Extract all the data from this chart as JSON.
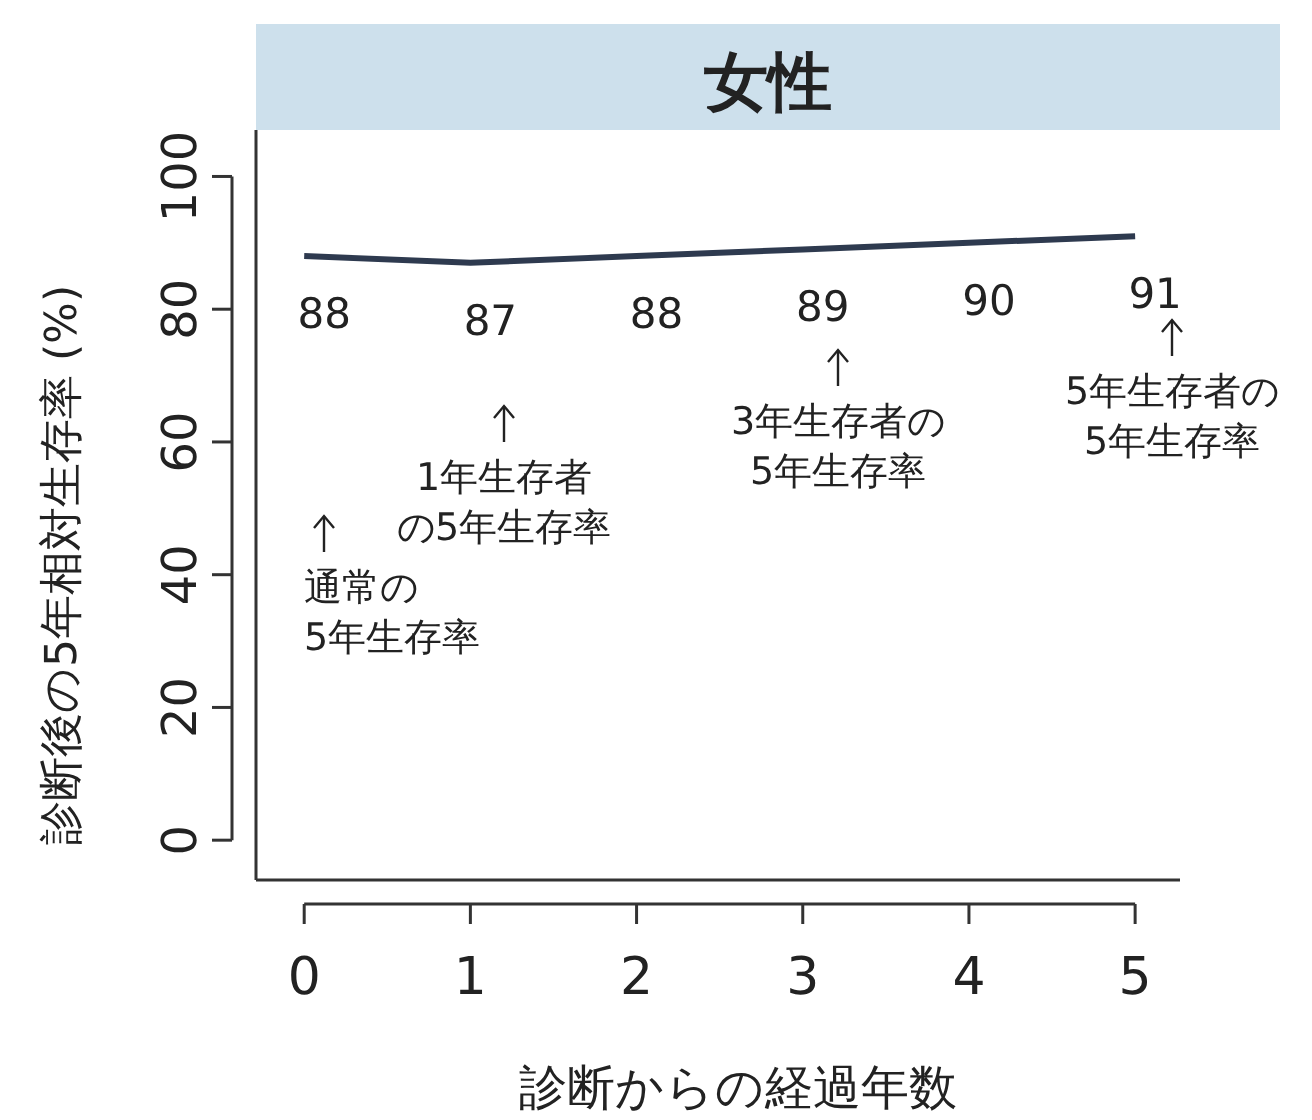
{
  "chart_data": {
    "type": "line",
    "title": "女性",
    "xlabel": "診断からの経過年数",
    "ylabel": "診断後の5年相対生存率 (%)",
    "x": [
      0,
      1,
      2,
      3,
      4,
      5
    ],
    "series": [
      {
        "color": "#2e3a4f",
        "values": [
          88,
          87,
          88,
          89,
          90,
          91
        ]
      }
    ],
    "xlim": [
      -0.29,
      5.27
    ],
    "ylim": [
      -6,
      107
    ],
    "xticks": [
      0,
      1,
      2,
      3,
      4,
      5
    ],
    "yticks": [
      0,
      20,
      40,
      60,
      80,
      100
    ],
    "data_labels": true,
    "grid": false,
    "marker": "none",
    "line_style": "solid",
    "annotations": [
      "通常の5年生存率",
      "1年生存者の5年生存率",
      "3年生存者の5年生存率",
      "5年生存者の5年生存率"
    ]
  }
}
